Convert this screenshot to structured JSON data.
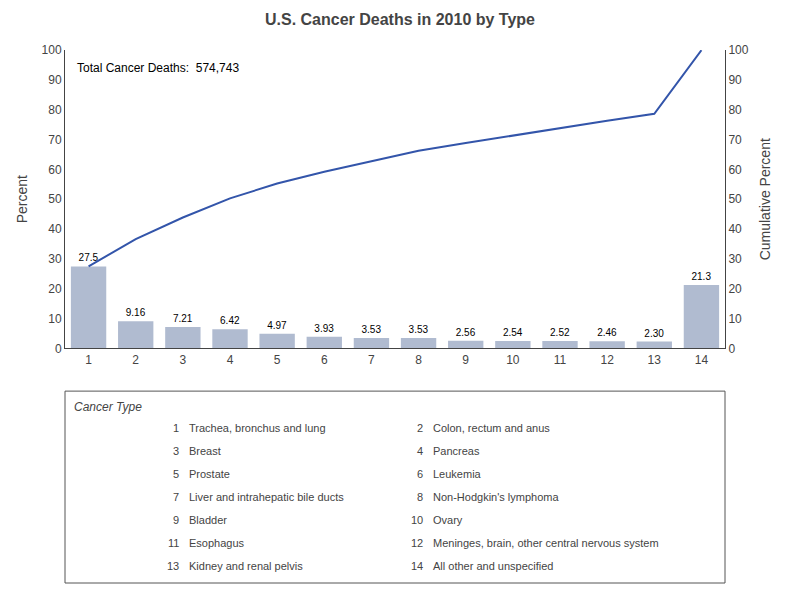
{
  "chart_data": {
    "type": "bar",
    "title": "U.S. Cancer Deaths in 2010 by Type",
    "annotations": [
      {
        "text": "Total Cancer Deaths:  574,743"
      }
    ],
    "ylabel": "Percent",
    "y2label": "Cumulative Percent",
    "categories": [
      1,
      2,
      3,
      4,
      5,
      6,
      7,
      8,
      9,
      10,
      11,
      12,
      13,
      14
    ],
    "series": [
      {
        "type": "bar",
        "color": "#b0bbd0",
        "values": [
          27.5,
          9.16,
          7.21,
          6.42,
          4.97,
          3.93,
          3.53,
          3.53,
          2.56,
          2.54,
          2.52,
          2.46,
          2.3,
          21.3
        ],
        "data_labels": true,
        "value_labels": [
          "27.5",
          "9.16",
          "7.21",
          "6.42",
          "4.97",
          "3.93",
          "3.53",
          "3.53",
          "2.56",
          "2.54",
          "2.52",
          "2.46",
          "2.30",
          "21.3"
        ]
      },
      {
        "type": "line",
        "color": "#3355aa",
        "axis": "y2",
        "values": [
          27.5,
          36.66,
          43.87,
          50.29,
          55.26,
          59.19,
          62.72,
          66.25,
          68.81,
          71.35,
          73.87,
          76.33,
          78.63,
          99.93
        ]
      }
    ],
    "ylim": [
      0,
      100
    ],
    "yticks": [
      0,
      10,
      20,
      30,
      40,
      50,
      60,
      70,
      80,
      90,
      100
    ],
    "y2lim": [
      0,
      100
    ],
    "y2ticks": [
      0,
      10,
      20,
      30,
      40,
      50,
      60,
      70,
      80,
      90,
      100
    ],
    "grid": false,
    "category_key": {
      "title": "Cancer Type",
      "rows": [
        [
          "1",
          "Trachea, bronchus and lung",
          "2",
          "Colon, rectum and anus"
        ],
        [
          "3",
          "Breast",
          "4",
          "Pancreas"
        ],
        [
          "5",
          "Prostate",
          "6",
          "Leukemia"
        ],
        [
          "7",
          "Liver and intrahepatic bile ducts",
          "8",
          "Non-Hodgkin's lymphoma"
        ],
        [
          "9",
          "Bladder",
          "10",
          "Ovary"
        ],
        [
          "11",
          "Esophagus",
          "12",
          "Meninges, brain, other central nervous system"
        ],
        [
          "13",
          "Kidney and renal pelvis",
          "14",
          "All other and unspecified"
        ]
      ]
    }
  }
}
